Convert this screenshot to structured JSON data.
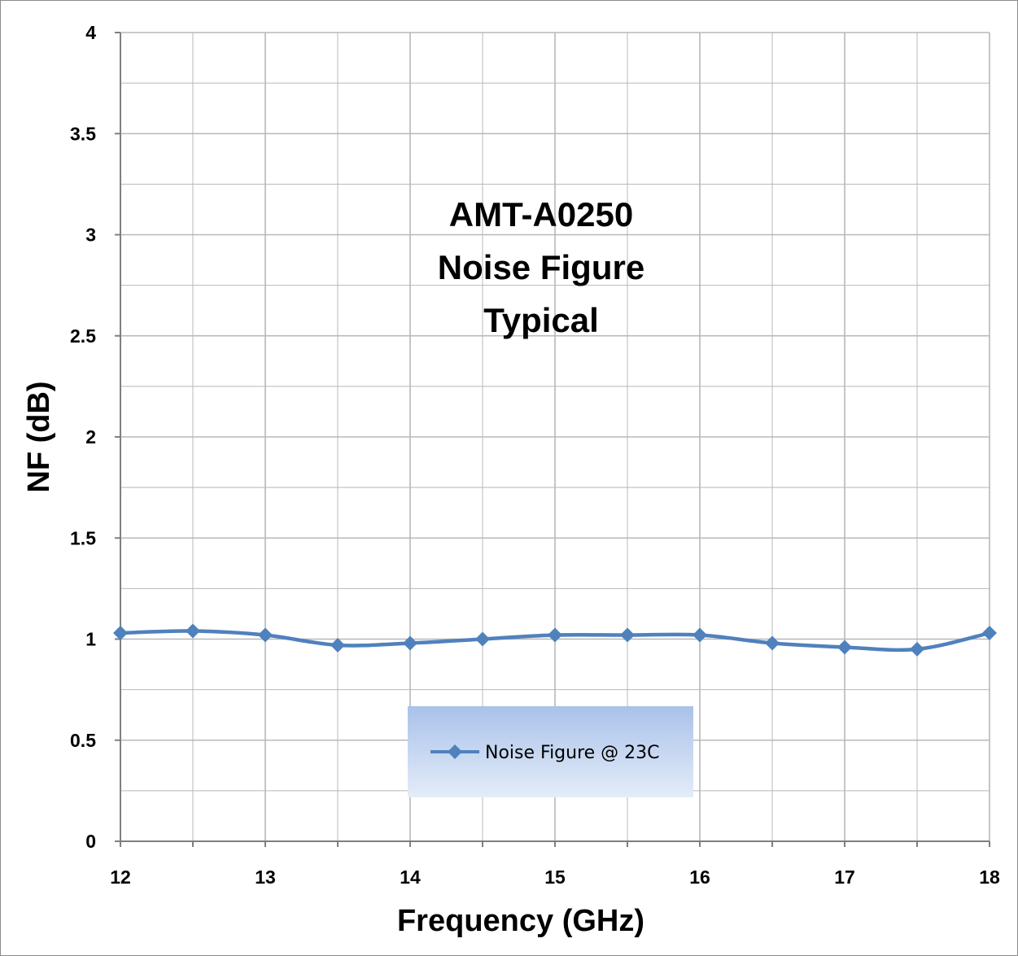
{
  "chart_data": {
    "type": "line",
    "title_lines": [
      "AMT-A0250",
      "Noise Figure",
      "Typical"
    ],
    "xlabel": "Frequency (GHz)",
    "ylabel": "NF  (dB)",
    "xlim": [
      12,
      18
    ],
    "ylim": [
      0,
      4
    ],
    "x_ticks": [
      "12",
      "13",
      "14",
      "15",
      "16",
      "17",
      "18"
    ],
    "y_ticks": [
      "0",
      "0.5",
      "1",
      "1.5",
      "2",
      "2.5",
      "3",
      "3.5",
      "4"
    ],
    "grid": true,
    "legend_position": "bottom-center",
    "series": [
      {
        "name": "Noise Figure @ 23C",
        "color": "#4f81bd",
        "marker": "diamond",
        "x": [
          12,
          12.5,
          13,
          13.5,
          14,
          14.5,
          15,
          15.5,
          16,
          16.5,
          17,
          17.5,
          18
        ],
        "y": [
          1.03,
          1.04,
          1.02,
          0.97,
          0.98,
          1.0,
          1.02,
          1.02,
          1.02,
          0.98,
          0.96,
          0.95,
          1.03
        ]
      }
    ]
  }
}
